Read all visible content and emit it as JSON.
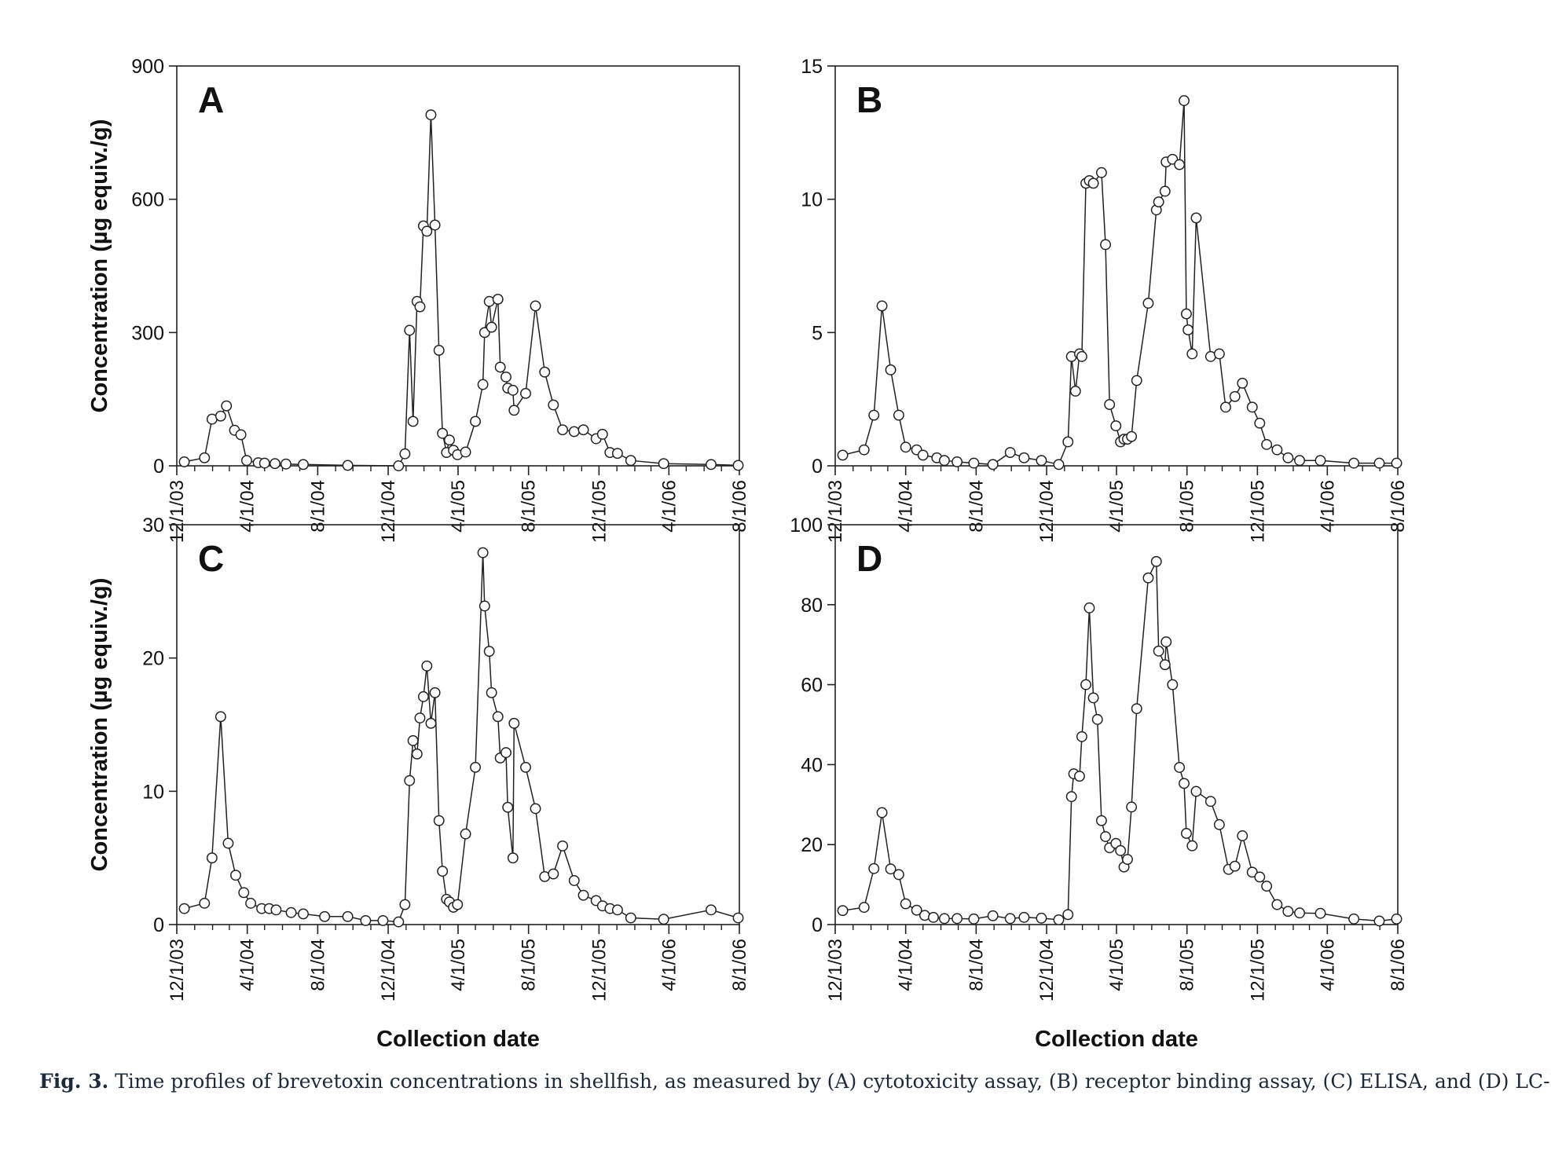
{
  "figure": {
    "caption_prefix": "Fig. 3.",
    "caption_text": " Time profiles of brevetoxin concentrations in shellfish, as measured by (A) cytotoxicity assay, (B) receptor binding assay, (C) ELISA, and (D) LC-MS."
  },
  "chart_data": [
    {
      "type": "line",
      "panel_label": "A",
      "xlabel": "",
      "ylabel": "Concentration (µg equiv./g)",
      "xlim": [
        "2003-12-01",
        "2006-08-01"
      ],
      "ylim": [
        0,
        900
      ],
      "yticks": [
        0,
        300,
        600,
        900
      ],
      "xticks": [
        "2003-12-01",
        "2004-04-01",
        "2004-08-01",
        "2004-12-01",
        "2005-04-01",
        "2005-08-01",
        "2005-12-01",
        "2006-04-01",
        "2006-08-01"
      ],
      "xticklabels": [
        "12/1/03",
        "4/1/04",
        "8/1/04",
        "12/1/04",
        "4/1/05",
        "8/1/05",
        "12/1/05",
        "4/1/06",
        "8/1/06"
      ],
      "grid": false,
      "marker": "open-circle",
      "series": [
        {
          "x": [
            "2003-12-14",
            "2004-01-18",
            "2004-01-31",
            "2004-02-15",
            "2004-02-25",
            "2004-03-10",
            "2004-03-21",
            "2004-03-31",
            "2004-04-20",
            "2004-05-01",
            "2004-05-19",
            "2004-06-07",
            "2004-07-07",
            "2004-09-22",
            "2004-12-19",
            "2004-12-30",
            "2005-01-07",
            "2005-01-13",
            "2005-01-20",
            "2005-01-25",
            "2005-01-31",
            "2005-02-06",
            "2005-02-13",
            "2005-02-20",
            "2005-02-27",
            "2005-03-05",
            "2005-03-12",
            "2005-03-17",
            "2005-03-24",
            "2005-03-31",
            "2005-04-14",
            "2005-05-01",
            "2005-05-14",
            "2005-05-17",
            "2005-05-25",
            "2005-05-29",
            "2005-06-09",
            "2005-06-13",
            "2005-06-23",
            "2005-06-26",
            "2005-07-05",
            "2005-07-07",
            "2005-07-27",
            "2005-08-13",
            "2005-08-29",
            "2005-09-13",
            "2005-09-29",
            "2005-10-19",
            "2005-11-04",
            "2005-11-26",
            "2005-12-07",
            "2005-12-20",
            "2006-01-02",
            "2006-01-25",
            "2006-03-23",
            "2006-06-13",
            "2006-07-30"
          ],
          "y": [
            9,
            18,
            105,
            112,
            135,
            80,
            70,
            12,
            7,
            6,
            5,
            4,
            3,
            1,
            0,
            27,
            305,
            100,
            370,
            358,
            540,
            528,
            790,
            542,
            260,
            73,
            30,
            58,
            35,
            25,
            31,
            100,
            183,
            300,
            370,
            312,
            375,
            222,
            200,
            175,
            170,
            125,
            163,
            360,
            211,
            137,
            81,
            77,
            81,
            61,
            71,
            30,
            28,
            12,
            5,
            3,
            1
          ]
        }
      ]
    },
    {
      "type": "line",
      "panel_label": "B",
      "xlabel": "",
      "ylabel": "",
      "xlim": [
        "2003-12-01",
        "2006-08-01"
      ],
      "ylim": [
        0,
        15
      ],
      "yticks": [
        0,
        5,
        10,
        15
      ],
      "xticks": [
        "2003-12-01",
        "2004-04-01",
        "2004-08-01",
        "2004-12-01",
        "2005-04-01",
        "2005-08-01",
        "2005-12-01",
        "2006-04-01",
        "2006-08-01"
      ],
      "xticklabels": [
        "12/1/03",
        "4/1/04",
        "8/1/04",
        "12/1/04",
        "4/1/05",
        "8/1/05",
        "12/1/05",
        "4/1/06",
        "8/1/06"
      ],
      "grid": false,
      "marker": "open-circle",
      "series": [
        {
          "x": [
            "2003-12-14",
            "2004-01-20",
            "2004-02-06",
            "2004-02-20",
            "2004-03-06",
            "2004-03-20",
            "2004-04-01",
            "2004-04-20",
            "2004-05-01",
            "2004-05-25",
            "2004-06-07",
            "2004-06-29",
            "2004-07-28",
            "2004-08-30",
            "2004-09-29",
            "2004-10-23",
            "2004-11-22",
            "2004-12-22",
            "2005-01-07",
            "2005-01-13",
            "2005-01-20",
            "2005-01-27",
            "2005-01-31",
            "2005-02-07",
            "2005-02-13",
            "2005-02-20",
            "2005-03-06",
            "2005-03-13",
            "2005-03-20",
            "2005-03-31",
            "2005-04-08",
            "2005-04-14",
            "2005-04-20",
            "2005-04-27",
            "2005-05-06",
            "2005-05-26",
            "2005-06-09",
            "2005-06-13",
            "2005-06-24",
            "2005-06-26",
            "2005-07-07",
            "2005-07-19",
            "2005-07-27",
            "2005-07-31",
            "2005-08-03",
            "2005-08-10",
            "2005-08-17",
            "2005-09-11",
            "2005-09-26",
            "2005-10-07",
            "2005-10-23",
            "2005-11-05",
            "2005-11-22",
            "2005-12-05",
            "2005-12-17",
            "2006-01-04",
            "2006-01-23",
            "2006-02-12",
            "2006-03-20",
            "2006-05-17",
            "2006-06-30",
            "2006-07-30"
          ],
          "y": [
            0.4,
            0.6,
            1.9,
            6.0,
            3.6,
            1.9,
            0.7,
            0.6,
            0.4,
            0.3,
            0.2,
            0.15,
            0.1,
            0.05,
            0.5,
            0.3,
            0.2,
            0.05,
            0.9,
            4.1,
            2.8,
            4.2,
            4.1,
            10.6,
            10.7,
            10.6,
            11.0,
            8.3,
            2.3,
            1.5,
            0.9,
            1.0,
            1.0,
            1.1,
            3.2,
            6.1,
            9.6,
            9.9,
            10.3,
            11.4,
            11.5,
            11.3,
            13.7,
            5.7,
            5.1,
            4.2,
            9.3,
            4.1,
            4.2,
            2.2,
            2.6,
            3.1,
            2.2,
            1.6,
            0.8,
            0.6,
            0.3,
            0.2,
            0.2,
            0.1,
            0.1,
            0.1
          ]
        }
      ]
    },
    {
      "type": "line",
      "panel_label": "C",
      "xlabel": "Collection date",
      "ylabel": "Concentration (µg equiv./g)",
      "xlim": [
        "2003-12-01",
        "2006-08-01"
      ],
      "ylim": [
        0,
        30
      ],
      "yticks": [
        0,
        10,
        20,
        30
      ],
      "xticks": [
        "2003-12-01",
        "2004-04-01",
        "2004-08-01",
        "2004-12-01",
        "2005-04-01",
        "2005-08-01",
        "2005-12-01",
        "2006-04-01",
        "2006-08-01"
      ],
      "xticklabels": [
        "12/1/03",
        "4/1/04",
        "8/1/04",
        "12/1/04",
        "4/1/05",
        "8/1/05",
        "12/1/05",
        "4/1/06",
        "8/1/06"
      ],
      "grid": false,
      "marker": "open-circle",
      "series": [
        {
          "x": [
            "2003-12-14",
            "2004-01-18",
            "2004-01-31",
            "2004-02-15",
            "2004-02-28",
            "2004-03-12",
            "2004-03-26",
            "2004-04-07",
            "2004-04-26",
            "2004-05-09",
            "2004-05-21",
            "2004-06-16",
            "2004-07-07",
            "2004-08-13",
            "2004-09-22",
            "2004-10-23",
            "2004-11-22",
            "2004-12-19",
            "2004-12-30",
            "2005-01-07",
            "2005-01-13",
            "2005-01-20",
            "2005-01-25",
            "2005-01-31",
            "2005-02-06",
            "2005-02-13",
            "2005-02-20",
            "2005-02-27",
            "2005-03-05",
            "2005-03-12",
            "2005-03-17",
            "2005-03-24",
            "2005-03-31",
            "2005-04-14",
            "2005-05-01",
            "2005-05-14",
            "2005-05-17",
            "2005-05-25",
            "2005-05-29",
            "2005-06-09",
            "2005-06-13",
            "2005-06-23",
            "2005-06-26",
            "2005-07-05",
            "2005-07-07",
            "2005-07-27",
            "2005-08-13",
            "2005-08-29",
            "2005-09-13",
            "2005-09-29",
            "2005-10-19",
            "2005-11-04",
            "2005-11-26",
            "2005-12-07",
            "2005-12-20",
            "2006-01-02",
            "2006-01-25",
            "2006-03-23",
            "2006-06-13",
            "2006-07-30"
          ],
          "y": [
            1.2,
            1.6,
            5.0,
            15.6,
            6.1,
            3.7,
            2.4,
            1.6,
            1.2,
            1.2,
            1.1,
            0.9,
            0.8,
            0.6,
            0.6,
            0.3,
            0.3,
            0.2,
            1.5,
            10.8,
            13.8,
            12.8,
            15.5,
            17.1,
            19.4,
            15.1,
            17.4,
            7.8,
            4.0,
            1.9,
            1.7,
            1.3,
            1.5,
            6.8,
            11.8,
            27.9,
            23.9,
            20.5,
            17.4,
            15.6,
            12.5,
            12.9,
            8.8,
            5.0,
            15.1,
            11.8,
            8.7,
            3.6,
            3.8,
            5.9,
            3.3,
            2.2,
            1.8,
            1.4,
            1.2,
            1.1,
            0.5,
            0.4,
            1.1,
            0.5
          ]
        }
      ]
    },
    {
      "type": "line",
      "panel_label": "D",
      "xlabel": "Collection date",
      "ylabel": "",
      "xlim": [
        "2003-12-01",
        "2006-08-01"
      ],
      "ylim": [
        0,
        100
      ],
      "yticks": [
        0,
        20,
        40,
        60,
        80,
        100
      ],
      "xticks": [
        "2003-12-01",
        "2004-04-01",
        "2004-08-01",
        "2004-12-01",
        "2005-04-01",
        "2005-08-01",
        "2005-12-01",
        "2006-04-01",
        "2006-08-01"
      ],
      "xticklabels": [
        "12/1/03",
        "4/1/04",
        "8/1/04",
        "12/1/04",
        "4/1/05",
        "8/1/05",
        "12/1/05",
        "4/1/06",
        "8/1/06"
      ],
      "grid": false,
      "marker": "open-circle",
      "series": [
        {
          "x": [
            "2003-12-14",
            "2004-01-20",
            "2004-02-06",
            "2004-02-20",
            "2004-03-06",
            "2004-03-20",
            "2004-04-01",
            "2004-04-20",
            "2004-05-04",
            "2004-05-19",
            "2004-06-07",
            "2004-06-29",
            "2004-07-28",
            "2004-08-30",
            "2004-09-29",
            "2004-10-23",
            "2004-11-22",
            "2004-12-22",
            "2005-01-07",
            "2005-01-13",
            "2005-01-17",
            "2005-01-27",
            "2005-01-31",
            "2005-02-07",
            "2005-02-13",
            "2005-02-20",
            "2005-02-27",
            "2005-03-06",
            "2005-03-13",
            "2005-03-20",
            "2005-03-31",
            "2005-04-08",
            "2005-04-14",
            "2005-04-20",
            "2005-04-27",
            "2005-05-06",
            "2005-05-26",
            "2005-06-09",
            "2005-06-13",
            "2005-06-24",
            "2005-06-26",
            "2005-07-07",
            "2005-07-19",
            "2005-07-27",
            "2005-07-31",
            "2005-08-10",
            "2005-08-17",
            "2005-09-11",
            "2005-09-26",
            "2005-10-12",
            "2005-10-23",
            "2005-11-05",
            "2005-11-22",
            "2005-12-05",
            "2005-12-17",
            "2006-01-04",
            "2006-01-23",
            "2006-02-12",
            "2006-03-20",
            "2006-05-17",
            "2006-06-30",
            "2006-07-30"
          ],
          "y": [
            3.5,
            4.3,
            14.0,
            28.0,
            13.9,
            12.5,
            5.2,
            3.6,
            2.3,
            1.8,
            1.5,
            1.5,
            1.4,
            2.2,
            1.5,
            1.8,
            1.6,
            1.2,
            2.5,
            32.0,
            37.7,
            37.1,
            47.0,
            60.0,
            79.2,
            56.7,
            51.3,
            26.0,
            22.0,
            19.2,
            20.3,
            18.5,
            14.4,
            16.3,
            29.4,
            54.0,
            86.7,
            90.8,
            68.4,
            65.0,
            70.7,
            60.0,
            39.3,
            35.3,
            22.8,
            19.7,
            33.3,
            30.8,
            25.0,
            13.8,
            14.6,
            22.2,
            13.1,
            11.9,
            9.6,
            5.0,
            3.3,
            2.9,
            2.8,
            1.4,
            0.9,
            1.4
          ]
        }
      ]
    }
  ]
}
